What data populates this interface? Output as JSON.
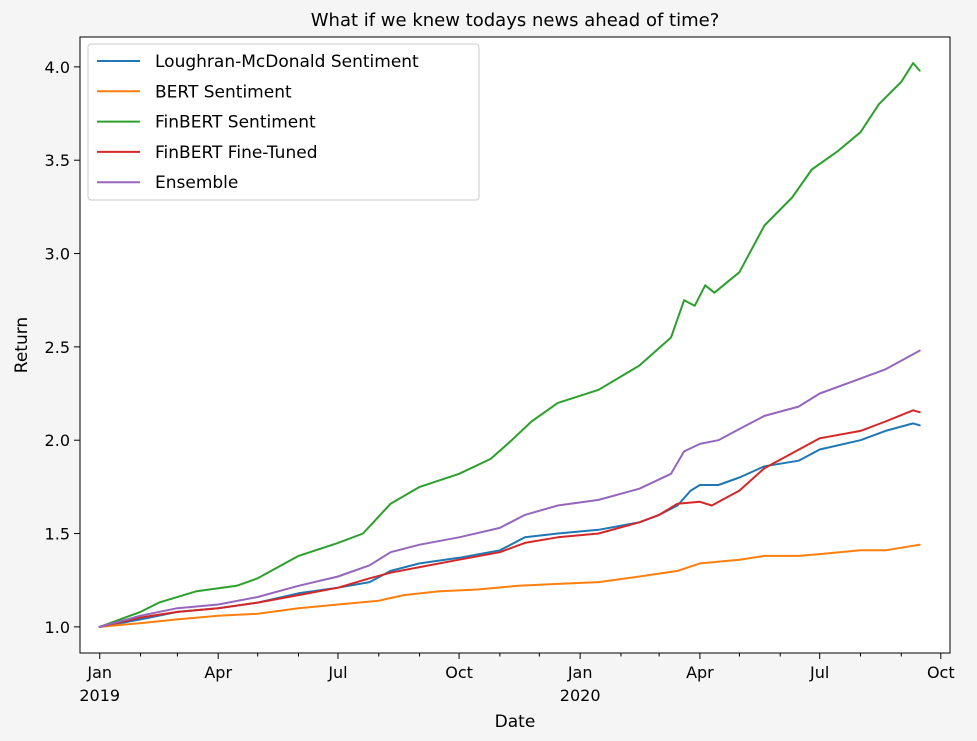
{
  "chart_data": {
    "type": "line",
    "title": "What if we knew todays news ahead of time?",
    "xlabel": "Date",
    "ylabel": "Return",
    "x_range": [
      "2018-12-17",
      "2020-10-08"
    ],
    "ylim": [
      0.86,
      4.16
    ],
    "y_ticks": [
      1.0,
      1.5,
      2.0,
      2.5,
      3.0,
      3.5,
      4.0
    ],
    "y_tick_labels": [
      "1.0",
      "1.5",
      "2.0",
      "2.5",
      "3.0",
      "3.5",
      "4.0"
    ],
    "x_ticks": [
      {
        "date": "2019-01-01",
        "label": "Jan",
        "sublabel": "2019"
      },
      {
        "date": "2019-04-01",
        "label": "Apr",
        "sublabel": ""
      },
      {
        "date": "2019-07-01",
        "label": "Jul",
        "sublabel": ""
      },
      {
        "date": "2019-10-01",
        "label": "Oct",
        "sublabel": ""
      },
      {
        "date": "2020-01-01",
        "label": "Jan",
        "sublabel": "2020"
      },
      {
        "date": "2020-04-01",
        "label": "Apr",
        "sublabel": ""
      },
      {
        "date": "2020-07-01",
        "label": "Jul",
        "sublabel": ""
      },
      {
        "date": "2020-10-01",
        "label": "Oct",
        "sublabel": ""
      }
    ],
    "grid": false,
    "legend_position": "upper-left",
    "series": [
      {
        "name": "Loughran-McDonald Sentiment",
        "color": "#1f77b4",
        "points": [
          [
            "2019-01-01",
            1.0
          ],
          [
            "2019-02-01",
            1.04
          ],
          [
            "2019-03-01",
            1.08
          ],
          [
            "2019-04-01",
            1.1
          ],
          [
            "2019-05-01",
            1.13
          ],
          [
            "2019-06-01",
            1.18
          ],
          [
            "2019-07-01",
            1.21
          ],
          [
            "2019-07-25",
            1.24
          ],
          [
            "2019-08-10",
            1.3
          ],
          [
            "2019-09-01",
            1.34
          ],
          [
            "2019-10-01",
            1.37
          ],
          [
            "2019-11-01",
            1.41
          ],
          [
            "2019-11-20",
            1.48
          ],
          [
            "2019-12-15",
            1.5
          ],
          [
            "2020-01-15",
            1.52
          ],
          [
            "2020-02-15",
            1.56
          ],
          [
            "2020-03-01",
            1.6
          ],
          [
            "2020-03-15",
            1.65
          ],
          [
            "2020-03-25",
            1.73
          ],
          [
            "2020-04-01",
            1.76
          ],
          [
            "2020-04-15",
            1.76
          ],
          [
            "2020-05-01",
            1.8
          ],
          [
            "2020-05-20",
            1.86
          ],
          [
            "2020-06-15",
            1.89
          ],
          [
            "2020-07-01",
            1.95
          ],
          [
            "2020-08-01",
            2.0
          ],
          [
            "2020-08-20",
            2.05
          ],
          [
            "2020-09-10",
            2.09
          ],
          [
            "2020-09-15",
            2.08
          ]
        ]
      },
      {
        "name": "BERT Sentiment",
        "color": "#ff7f0e",
        "points": [
          [
            "2019-01-01",
            1.0
          ],
          [
            "2019-02-01",
            1.02
          ],
          [
            "2019-03-01",
            1.04
          ],
          [
            "2019-04-01",
            1.06
          ],
          [
            "2019-05-01",
            1.07
          ],
          [
            "2019-06-01",
            1.1
          ],
          [
            "2019-07-01",
            1.12
          ],
          [
            "2019-08-01",
            1.14
          ],
          [
            "2019-08-20",
            1.17
          ],
          [
            "2019-09-15",
            1.19
          ],
          [
            "2019-10-15",
            1.2
          ],
          [
            "2019-11-15",
            1.22
          ],
          [
            "2019-12-15",
            1.23
          ],
          [
            "2020-01-15",
            1.24
          ],
          [
            "2020-02-15",
            1.27
          ],
          [
            "2020-03-15",
            1.3
          ],
          [
            "2020-04-01",
            1.34
          ],
          [
            "2020-05-01",
            1.36
          ],
          [
            "2020-05-20",
            1.38
          ],
          [
            "2020-06-15",
            1.38
          ],
          [
            "2020-07-01",
            1.39
          ],
          [
            "2020-08-01",
            1.41
          ],
          [
            "2020-08-20",
            1.41
          ],
          [
            "2020-09-15",
            1.44
          ]
        ]
      },
      {
        "name": "FinBERT Sentiment",
        "color": "#2ca02c",
        "points": [
          [
            "2019-01-01",
            1.0
          ],
          [
            "2019-02-01",
            1.08
          ],
          [
            "2019-02-15",
            1.13
          ],
          [
            "2019-03-15",
            1.19
          ],
          [
            "2019-04-15",
            1.22
          ],
          [
            "2019-05-01",
            1.26
          ],
          [
            "2019-06-01",
            1.38
          ],
          [
            "2019-07-01",
            1.45
          ],
          [
            "2019-07-20",
            1.5
          ],
          [
            "2019-08-10",
            1.66
          ],
          [
            "2019-09-01",
            1.75
          ],
          [
            "2019-10-01",
            1.82
          ],
          [
            "2019-10-25",
            1.9
          ],
          [
            "2019-11-10",
            2.0
          ],
          [
            "2019-11-25",
            2.1
          ],
          [
            "2019-12-15",
            2.2
          ],
          [
            "2020-01-15",
            2.27
          ],
          [
            "2020-02-15",
            2.4
          ],
          [
            "2020-03-10",
            2.55
          ],
          [
            "2020-03-20",
            2.75
          ],
          [
            "2020-03-28",
            2.72
          ],
          [
            "2020-04-05",
            2.83
          ],
          [
            "2020-04-12",
            2.79
          ],
          [
            "2020-05-01",
            2.9
          ],
          [
            "2020-05-20",
            3.15
          ],
          [
            "2020-06-10",
            3.3
          ],
          [
            "2020-06-25",
            3.45
          ],
          [
            "2020-07-15",
            3.55
          ],
          [
            "2020-08-01",
            3.65
          ],
          [
            "2020-08-15",
            3.8
          ],
          [
            "2020-09-01",
            3.92
          ],
          [
            "2020-09-10",
            4.02
          ],
          [
            "2020-09-15",
            3.98
          ]
        ]
      },
      {
        "name": "FinBERT Fine-Tuned",
        "color": "#d62728",
        "points": [
          [
            "2019-01-01",
            1.0
          ],
          [
            "2019-02-01",
            1.05
          ],
          [
            "2019-03-01",
            1.08
          ],
          [
            "2019-04-01",
            1.1
          ],
          [
            "2019-05-01",
            1.13
          ],
          [
            "2019-06-01",
            1.17
          ],
          [
            "2019-07-01",
            1.21
          ],
          [
            "2019-07-25",
            1.26
          ],
          [
            "2019-08-10",
            1.29
          ],
          [
            "2019-09-01",
            1.32
          ],
          [
            "2019-10-01",
            1.36
          ],
          [
            "2019-11-01",
            1.4
          ],
          [
            "2019-11-20",
            1.45
          ],
          [
            "2019-12-15",
            1.48
          ],
          [
            "2020-01-15",
            1.5
          ],
          [
            "2020-02-15",
            1.56
          ],
          [
            "2020-03-01",
            1.6
          ],
          [
            "2020-03-15",
            1.66
          ],
          [
            "2020-04-01",
            1.67
          ],
          [
            "2020-04-10",
            1.65
          ],
          [
            "2020-05-01",
            1.73
          ],
          [
            "2020-05-20",
            1.85
          ],
          [
            "2020-06-10",
            1.93
          ],
          [
            "2020-07-01",
            2.01
          ],
          [
            "2020-08-01",
            2.05
          ],
          [
            "2020-08-20",
            2.1
          ],
          [
            "2020-09-10",
            2.16
          ],
          [
            "2020-09-15",
            2.15
          ]
        ]
      },
      {
        "name": "Ensemble",
        "color": "#9467bd",
        "points": [
          [
            "2019-01-01",
            1.0
          ],
          [
            "2019-02-01",
            1.06
          ],
          [
            "2019-03-01",
            1.1
          ],
          [
            "2019-04-01",
            1.12
          ],
          [
            "2019-05-01",
            1.16
          ],
          [
            "2019-06-01",
            1.22
          ],
          [
            "2019-07-01",
            1.27
          ],
          [
            "2019-07-25",
            1.33
          ],
          [
            "2019-08-10",
            1.4
          ],
          [
            "2019-09-01",
            1.44
          ],
          [
            "2019-10-01",
            1.48
          ],
          [
            "2019-11-01",
            1.53
          ],
          [
            "2019-11-20",
            1.6
          ],
          [
            "2019-12-15",
            1.65
          ],
          [
            "2020-01-15",
            1.68
          ],
          [
            "2020-02-15",
            1.74
          ],
          [
            "2020-03-10",
            1.82
          ],
          [
            "2020-03-20",
            1.94
          ],
          [
            "2020-04-01",
            1.98
          ],
          [
            "2020-04-15",
            2.0
          ],
          [
            "2020-05-01",
            2.06
          ],
          [
            "2020-05-20",
            2.13
          ],
          [
            "2020-06-15",
            2.18
          ],
          [
            "2020-07-01",
            2.25
          ],
          [
            "2020-08-01",
            2.33
          ],
          [
            "2020-08-20",
            2.38
          ],
          [
            "2020-09-10",
            2.46
          ],
          [
            "2020-09-15",
            2.48
          ]
        ]
      }
    ]
  }
}
